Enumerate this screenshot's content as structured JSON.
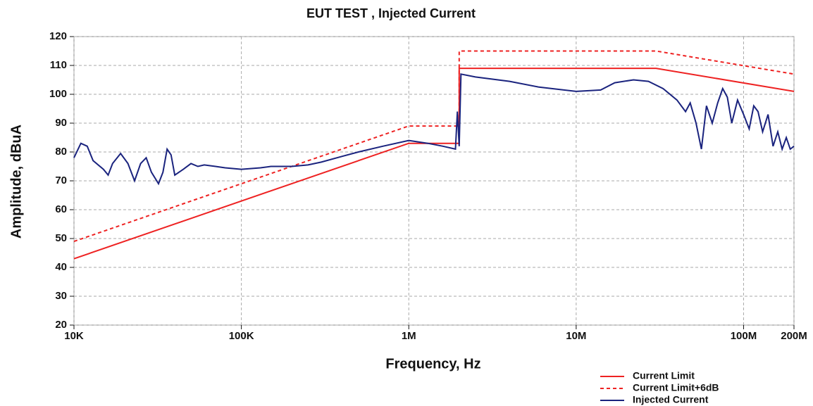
{
  "chart_data": {
    "type": "line",
    "title": "EUT TEST , Injected Current",
    "x_label": "Frequency, Hz",
    "y_label": "Amplitude, dBuA",
    "xscale": "log",
    "xlim": [
      10000,
      200000000
    ],
    "xticks": [
      {
        "value": 10000,
        "label": "10K"
      },
      {
        "value": 100000,
        "label": "100K"
      },
      {
        "value": 1000000,
        "label": "1M"
      },
      {
        "value": 10000000,
        "label": "10M"
      },
      {
        "value": 100000000,
        "label": "100M"
      },
      {
        "value": 200000000,
        "label": "200M"
      }
    ],
    "ylim": [
      20,
      120
    ],
    "yticks": [
      20,
      30,
      40,
      50,
      60,
      70,
      80,
      90,
      100,
      110,
      120
    ],
    "grid": true,
    "legend": "bottom-right",
    "series": [
      {
        "name": "Current Limit",
        "color": "#ee2222",
        "dash": "solid",
        "x": [
          10000,
          1000000,
          2000000,
          2000000,
          30000000,
          200000000
        ],
        "values": [
          43,
          83,
          83,
          109,
          109,
          101
        ]
      },
      {
        "name": "Current Limit+6dB",
        "color": "#ee2222",
        "dash": "dashed",
        "x": [
          10000,
          1000000,
          2000000,
          2000000,
          30000000,
          200000000
        ],
        "values": [
          49,
          89,
          89,
          115,
          115,
          107
        ]
      },
      {
        "name": "Injected Current",
        "color": "#1a237e",
        "dash": "solid",
        "x": [
          10000,
          11000,
          12000,
          13000,
          15000,
          16000,
          17000,
          19000,
          21000,
          23000,
          25000,
          27000,
          29000,
          32000,
          34000,
          36000,
          38000,
          40000,
          45000,
          50000,
          55000,
          60000,
          70000,
          80000,
          100000,
          130000,
          150000,
          200000,
          250000,
          300000,
          400000,
          500000,
          700000,
          1000000,
          1300000,
          1600000,
          1900000,
          1950000,
          2000000,
          2050000,
          2500000,
          4000000,
          6000000,
          10000000,
          14000000,
          17000000,
          22000000,
          27000000,
          33000000,
          40000000,
          45000000,
          48000000,
          52000000,
          56000000,
          60000000,
          65000000,
          70000000,
          75000000,
          80000000,
          85000000,
          92000000,
          100000000,
          108000000,
          115000000,
          122000000,
          130000000,
          140000000,
          150000000,
          160000000,
          170000000,
          180000000,
          190000000,
          200000000
        ],
        "values": [
          78,
          83,
          82,
          77,
          74,
          72,
          76,
          79.5,
          76,
          70,
          76,
          78,
          73,
          69,
          73,
          81,
          79,
          72,
          74,
          76,
          75,
          75.5,
          75,
          74.5,
          74,
          74.5,
          75,
          75,
          75.5,
          76.5,
          78.5,
          80,
          82,
          84,
          83,
          82,
          81,
          94,
          82,
          107,
          106,
          104.5,
          102.5,
          101,
          101.5,
          104,
          105,
          104.5,
          102,
          98,
          94,
          97,
          90,
          81,
          96,
          90,
          97,
          102,
          99,
          90,
          98,
          93,
          88,
          96,
          94,
          87,
          93,
          82,
          87,
          81,
          85,
          81,
          82
        ]
      }
    ]
  }
}
